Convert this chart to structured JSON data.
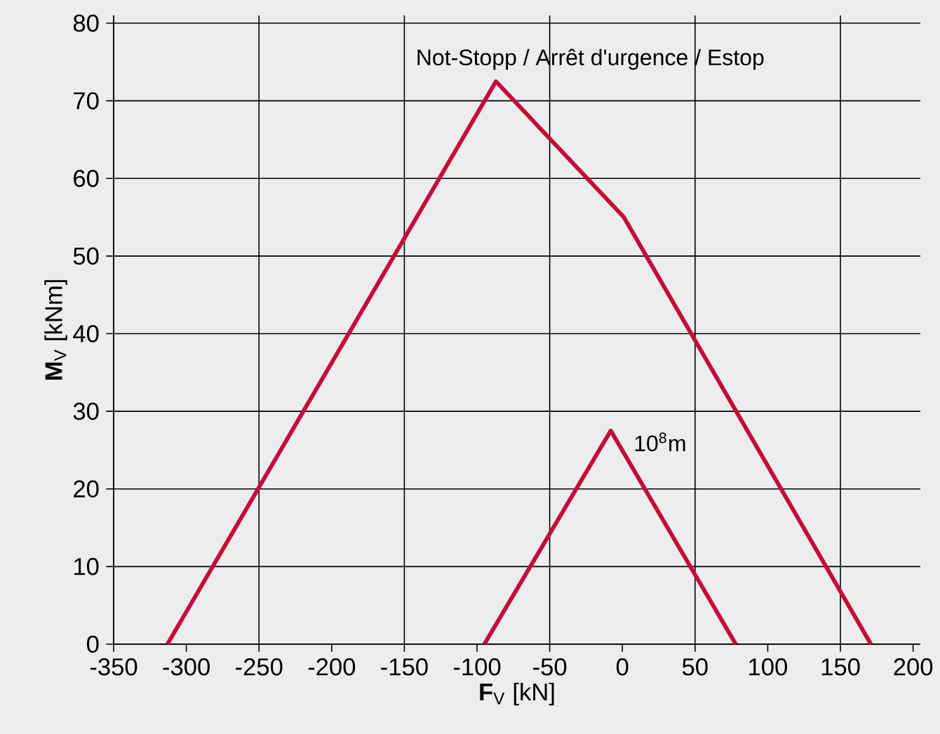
{
  "chart_data": {
    "type": "line",
    "xlabel": "**F**$_{V}$ [kN]",
    "ylabel": "**M**$_{V}$ [kNm]",
    "series": [
      {
        "color": "#c4093a",
        "x": [
          -313,
          -87,
          1,
          171
        ],
        "values": [
          0,
          72.5,
          55,
          0
        ]
      },
      {
        "color": "#c4093a",
        "x": [
          -95,
          -8,
          78
        ],
        "values": [
          0,
          27.5,
          0
        ]
      }
    ],
    "annotations": [
      {
        "text": "Not-Stopp / Arrêt d'urgence / Estop",
        "x": -87,
        "y": 72.5
      },
      {
        "text": "10$^{8}$m",
        "x": -8,
        "y": 27.5
      }
    ],
    "xlim": [
      -350,
      205
    ],
    "ylim": [
      0,
      81
    ],
    "xticks": [
      -350,
      -300,
      -250,
      -200,
      -150,
      -100,
      -50,
      0,
      50,
      100,
      150,
      200
    ],
    "yticks": [
      0,
      10,
      20,
      30,
      40,
      50,
      60,
      70,
      80
    ],
    "grid": true,
    "marker": "none",
    "line_style": "solid"
  }
}
